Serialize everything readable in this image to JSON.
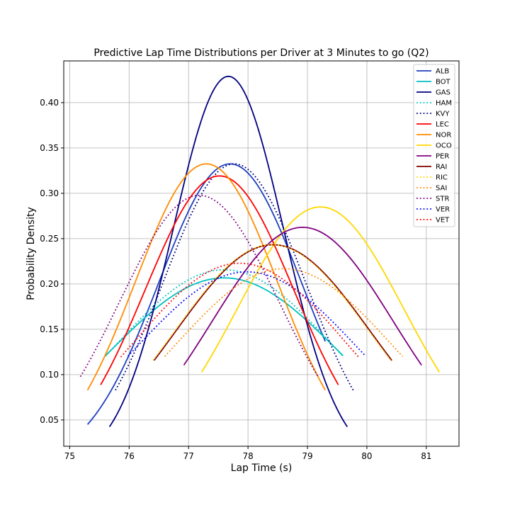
{
  "chart_data": {
    "type": "line",
    "title": "Predictive Lap Time Distributions per Driver at 3 Minutes to go (Q2)",
    "xlabel": "Lap Time (s)",
    "ylabel": "Probability Density",
    "xlim": [
      74.9,
      81.55
    ],
    "ylim": [
      0.021,
      0.446
    ],
    "xticks": [
      75,
      76,
      77,
      78,
      79,
      80,
      81
    ],
    "yticks": [
      0.05,
      0.1,
      0.15,
      0.2,
      0.25,
      0.3,
      0.35,
      0.4
    ],
    "ytick_labels": [
      "0.05",
      "0.10",
      "0.15",
      "0.20",
      "0.25",
      "0.30",
      "0.35",
      "0.40"
    ],
    "grid": true,
    "legend_position": "top-right",
    "series": [
      {
        "name": "ALB",
        "color": "#1f3fbf",
        "style": "solid",
        "mean": 77.7,
        "sd": 1.2,
        "x_range": [
          75.3,
          79.3
        ]
      },
      {
        "name": "BOT",
        "color": "#00c0c0",
        "style": "solid",
        "mean": 77.6,
        "sd": 1.93,
        "x_range": [
          75.6,
          79.6
        ]
      },
      {
        "name": "GAS",
        "color": "#000080",
        "style": "solid",
        "mean": 77.67,
        "sd": 0.93,
        "x_range": [
          75.67,
          79.67
        ]
      },
      {
        "name": "HAM",
        "color": "#00c0c0",
        "style": "dotted",
        "mean": 77.6,
        "sd": 1.85,
        "x_range": [
          75.6,
          79.6
        ]
      },
      {
        "name": "KVY",
        "color": "#000080",
        "style": "dotted",
        "mean": 77.77,
        "sd": 1.2,
        "x_range": [
          75.77,
          79.77
        ]
      },
      {
        "name": "LEC",
        "color": "#ff0000",
        "style": "solid",
        "mean": 77.52,
        "sd": 1.25,
        "x_range": [
          75.52,
          79.52
        ]
      },
      {
        "name": "NOR",
        "color": "#ff8c00",
        "style": "solid",
        "mean": 77.3,
        "sd": 1.2,
        "x_range": [
          75.3,
          79.3
        ]
      },
      {
        "name": "OCO",
        "color": "#ffd700",
        "style": "solid",
        "mean": 79.22,
        "sd": 1.4,
        "x_range": [
          77.22,
          81.22
        ]
      },
      {
        "name": "PER",
        "color": "#800080",
        "style": "solid",
        "mean": 78.92,
        "sd": 1.52,
        "x_range": [
          76.92,
          80.92
        ]
      },
      {
        "name": "RAI",
        "color": "#800000",
        "style": "solid",
        "mean": 78.42,
        "sd": 1.64,
        "x_range": [
          76.42,
          80.42
        ]
      },
      {
        "name": "RIC",
        "color": "#ffd700",
        "style": "dotted",
        "mean": 78.4,
        "sd": 1.64,
        "x_range": [
          76.4,
          80.4
        ]
      },
      {
        "name": "SAI",
        "color": "#ff8c00",
        "style": "dotted",
        "mean": 78.6,
        "sd": 1.84,
        "x_range": [
          76.6,
          80.6
        ]
      },
      {
        "name": "STR",
        "color": "#800080",
        "style": "dotted",
        "mean": 77.18,
        "sd": 1.34,
        "x_range": [
          75.18,
          79.18
        ]
      },
      {
        "name": "VER",
        "color": "#0000ff",
        "style": "dotted",
        "mean": 77.98,
        "sd": 1.87,
        "x_range": [
          75.98,
          79.98
        ]
      },
      {
        "name": "VET",
        "color": "#ff0000",
        "style": "dotted",
        "mean": 77.86,
        "sd": 1.79,
        "x_range": [
          75.86,
          79.86
        ]
      }
    ]
  }
}
